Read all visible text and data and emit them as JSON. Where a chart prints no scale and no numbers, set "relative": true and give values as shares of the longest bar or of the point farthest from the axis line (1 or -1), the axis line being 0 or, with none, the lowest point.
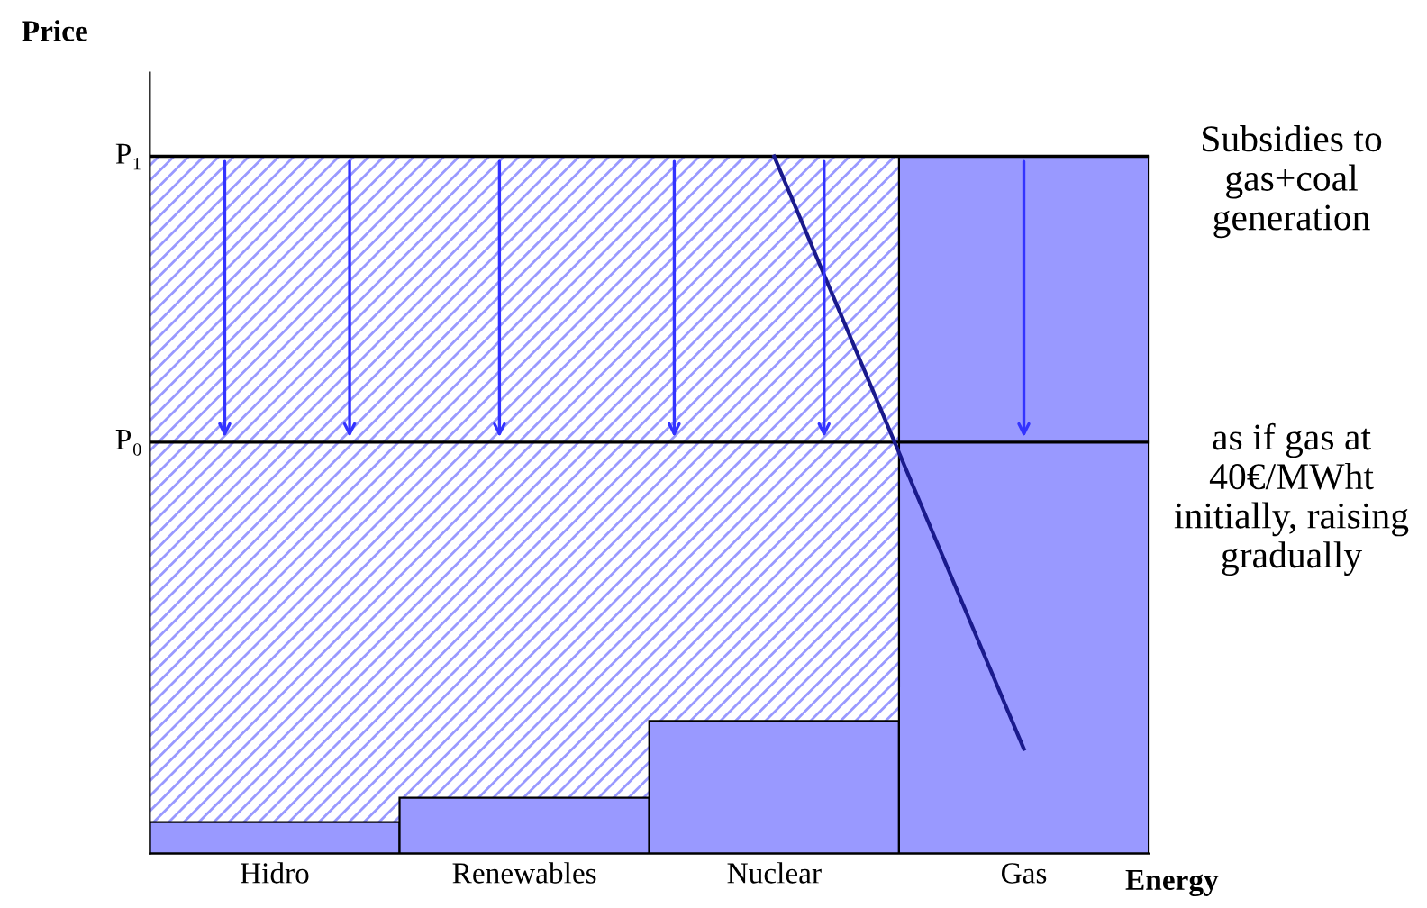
{
  "chart_data": {
    "type": "bar",
    "relative": true,
    "ylabel": "Price",
    "xlabel": "Energy",
    "categories": [
      "Hidro",
      "Renewables",
      "Nuclear",
      "Gas"
    ],
    "series": [
      {
        "color": "#9999ff",
        "values": [
          0.045,
          0.08,
          0.19,
          1.0
        ]
      },
      {
        "type": "line",
        "color": "#1a1a8c",
        "values": [
          null,
          null,
          1.0,
          0.15
        ]
      }
    ],
    "ref_lines": [
      {
        "axis": "y",
        "value": 0.59,
        "label": "P₀",
        "color": "#000000"
      },
      {
        "axis": "y",
        "value": 1.0,
        "label": "P₁",
        "color": "#000000"
      }
    ],
    "bands": [
      {
        "axis": "y",
        "from": 0,
        "to": 1.0,
        "label": null,
        "color": "#9999ff"
      }
    ],
    "annotations": [
      "Subsidies to gas+coal generation",
      "as if gas at 40€/MWht initially, raising gradually"
    ],
    "grid": false,
    "legend": false
  }
}
